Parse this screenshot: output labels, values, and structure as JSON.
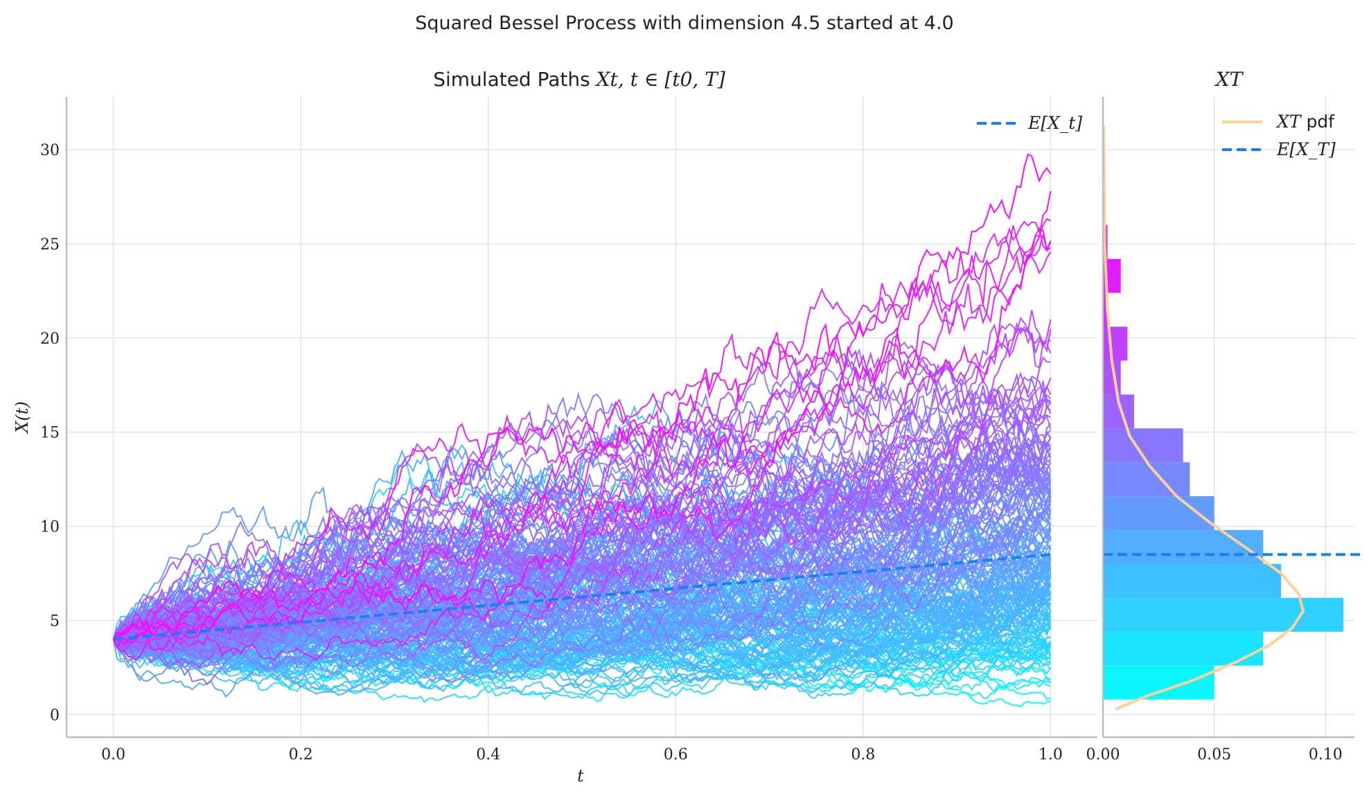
{
  "suptitle": "Squared Bessel Process with dimension 4.5 started at 4.0",
  "chart_data": [
    {
      "type": "line",
      "panel": "paths",
      "title": "Simulated Paths X_t, t ∈ [t_0, T]",
      "title_prefix": "Simulated Paths",
      "title_math": "Xt, t ∈ [t0, T]",
      "xlabel": "t",
      "ylabel": "X(t)",
      "xlim": [
        -0.05,
        1.05
      ],
      "ylim": [
        -1.2,
        32.8
      ],
      "xticks": [
        "0.0",
        "0.2",
        "0.4",
        "0.6",
        "0.8",
        "1.0"
      ],
      "xtick_values": [
        0,
        0.2,
        0.4,
        0.6,
        0.8,
        1.0
      ],
      "yticks": [
        "0",
        "5",
        "10",
        "15",
        "20",
        "25",
        "30"
      ],
      "ytick_values": [
        0,
        5,
        10,
        15,
        20,
        25,
        30
      ],
      "grid": true,
      "legend_placement": "top-right",
      "colormap": "cool",
      "n_paths_approx": 200,
      "start_value": 4.0,
      "t_end": 1.0,
      "series": [
        {
          "name": "E[X_t]",
          "style": "dashed",
          "color": "#1a7ef5",
          "x": [
            0,
            0.1,
            0.2,
            0.3,
            0.4,
            0.5,
            0.6,
            0.7,
            0.8,
            0.9,
            1.0
          ],
          "y": [
            4.0,
            4.45,
            4.9,
            5.35,
            5.8,
            6.25,
            6.7,
            7.15,
            7.6,
            8.05,
            8.5
          ]
        }
      ],
      "path_samples": {
        "x": [
          0,
          0.1,
          0.2,
          0.3,
          0.4,
          0.5,
          0.6,
          0.7,
          0.8,
          0.9,
          1.0
        ],
        "paths": [
          [
            4.0,
            7.8,
            13.8,
            10.5,
            9.5,
            9.0,
            9.5,
            8.5,
            7.0,
            6.5,
            6.0
          ],
          [
            4.0,
            6.5,
            9.5,
            12.0,
            14.5,
            14.5,
            16.0,
            22.0,
            19.5,
            21.0,
            22.5
          ],
          [
            4.0,
            6.0,
            9.0,
            10.0,
            11.0,
            13.0,
            15.0,
            17.0,
            19.0,
            22.0,
            25.8
          ],
          [
            4.0,
            5.5,
            8.0,
            10.0,
            11.5,
            10.5,
            11.5,
            12.5,
            15.5,
            18.5,
            20.5
          ],
          [
            4.0,
            5.5,
            7.5,
            8.5,
            10.0,
            11.0,
            12.5,
            13.5,
            15.0,
            16.0,
            17.5
          ],
          [
            4.0,
            5.0,
            6.5,
            7.0,
            8.0,
            9.0,
            10.0,
            11.5,
            12.5,
            14.0,
            15.0
          ],
          [
            4.0,
            4.5,
            5.5,
            6.5,
            7.0,
            8.0,
            9.0,
            10.0,
            11.5,
            12.0,
            12.5
          ],
          [
            4.0,
            4.5,
            5.0,
            5.5,
            6.5,
            7.0,
            7.5,
            8.0,
            9.0,
            9.5,
            10.0
          ],
          [
            4.0,
            4.0,
            4.5,
            5.0,
            5.5,
            6.0,
            6.5,
            7.0,
            7.5,
            8.0,
            8.5
          ],
          [
            4.0,
            4.0,
            4.0,
            4.5,
            5.0,
            5.0,
            5.5,
            6.0,
            6.0,
            6.5,
            7.0
          ],
          [
            4.0,
            3.5,
            3.5,
            4.0,
            4.0,
            4.5,
            4.5,
            5.0,
            5.0,
            5.5,
            5.5
          ],
          [
            4.0,
            3.5,
            3.0,
            3.0,
            3.5,
            3.5,
            3.5,
            4.0,
            4.0,
            4.0,
            4.0
          ],
          [
            4.0,
            3.0,
            2.5,
            2.5,
            2.5,
            2.5,
            3.0,
            3.0,
            3.0,
            3.0,
            3.0
          ],
          [
            4.0,
            2.5,
            2.0,
            2.0,
            1.8,
            2.0,
            2.0,
            2.2,
            2.0,
            1.8,
            2.0
          ],
          [
            4.0,
            2.0,
            1.0,
            1.2,
            1.0,
            1.2,
            1.0,
            1.0,
            1.2,
            0.8,
            0.8
          ]
        ]
      }
    },
    {
      "type": "bar",
      "orientation": "horizontal",
      "panel": "terminal-distribution",
      "title": "X_T",
      "title_math": "XT",
      "xlim": [
        0,
        0.113
      ],
      "ylim": [
        -1.2,
        32.8
      ],
      "xticks": [
        "0.00",
        "0.05",
        "0.10"
      ],
      "xtick_values": [
        0,
        0.05,
        0.1
      ],
      "grid": true,
      "legend_placement": "top-right",
      "bins": [
        {
          "y0": 0.8,
          "y1": 2.6,
          "value": 0.05
        },
        {
          "y0": 2.6,
          "y1": 4.4,
          "value": 0.072
        },
        {
          "y0": 4.4,
          "y1": 6.2,
          "value": 0.108
        },
        {
          "y0": 6.2,
          "y1": 8.0,
          "value": 0.08
        },
        {
          "y0": 8.0,
          "y1": 9.8,
          "value": 0.072
        },
        {
          "y0": 9.8,
          "y1": 11.6,
          "value": 0.05
        },
        {
          "y0": 11.6,
          "y1": 13.4,
          "value": 0.039
        },
        {
          "y0": 13.4,
          "y1": 15.2,
          "value": 0.036
        },
        {
          "y0": 15.2,
          "y1": 17.0,
          "value": 0.014
        },
        {
          "y0": 17.0,
          "y1": 18.8,
          "value": 0.008
        },
        {
          "y0": 18.8,
          "y1": 20.6,
          "value": 0.011
        },
        {
          "y0": 20.6,
          "y1": 22.4,
          "value": 0.002
        },
        {
          "y0": 22.4,
          "y1": 24.2,
          "value": 0.008
        },
        {
          "y0": 24.2,
          "y1": 26.0,
          "value": 0.002
        }
      ],
      "series": [
        {
          "name": "X_T pdf",
          "name_math": "XT",
          "name_suffix": "pdf",
          "color": "#fdd195",
          "x": [
            0.006,
            0.02,
            0.04,
            0.06,
            0.075,
            0.085,
            0.09,
            0.088,
            0.08,
            0.065,
            0.048,
            0.033,
            0.021,
            0.012,
            0.007,
            0.004,
            0.002,
            0.0008,
            0.0003
          ],
          "y": [
            0.3,
            1.0,
            1.8,
            2.8,
            3.7,
            4.6,
            5.5,
            6.4,
            7.5,
            8.8,
            10.2,
            11.6,
            13.2,
            14.8,
            16.6,
            18.8,
            21.5,
            25.0,
            31.2
          ]
        },
        {
          "name": "E[X_T]",
          "style": "dashed",
          "color": "#1a7ef5",
          "y_value": 8.5
        }
      ]
    }
  ]
}
